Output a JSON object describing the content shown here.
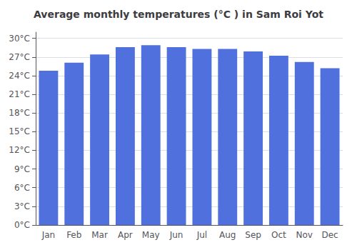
{
  "chart_data": {
    "type": "bar",
    "title": "Average monthly temperatures (°C ) in Sam Roi Yot",
    "categories": [
      "Jan",
      "Feb",
      "Mar",
      "Apr",
      "May",
      "Jun",
      "Jul",
      "Aug",
      "Sep",
      "Oct",
      "Nov",
      "Dec"
    ],
    "values": [
      24.8,
      26.1,
      27.4,
      28.6,
      28.9,
      28.6,
      28.3,
      28.3,
      27.9,
      27.2,
      26.2,
      25.2
    ],
    "ylim": [
      0,
      31
    ],
    "yticks": [
      {
        "value": 0,
        "label": "0°C"
      },
      {
        "value": 3,
        "label": "3°C"
      },
      {
        "value": 6,
        "label": "6°C"
      },
      {
        "value": 9,
        "label": "9°C"
      },
      {
        "value": 12,
        "label": "12°C"
      },
      {
        "value": 15,
        "label": "15°C"
      },
      {
        "value": 18,
        "label": "18°C"
      },
      {
        "value": 21,
        "label": "21°C"
      },
      {
        "value": 24,
        "label": "24°C"
      },
      {
        "value": 27,
        "label": "27°C"
      },
      {
        "value": 30,
        "label": "30°C"
      }
    ],
    "grid": true
  }
}
